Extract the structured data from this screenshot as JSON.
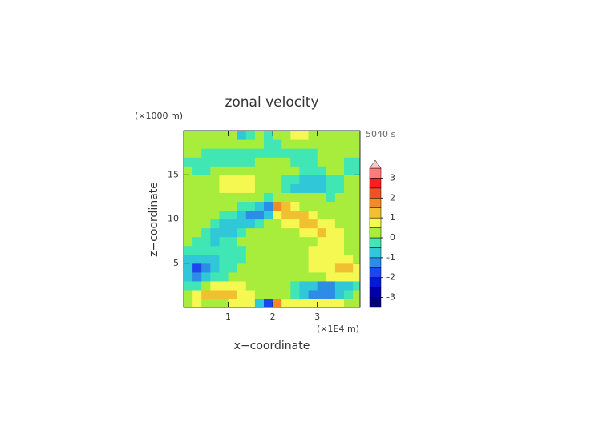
{
  "chart_data": {
    "type": "contour",
    "title": "zonal velocity",
    "time_label": "5040 s",
    "xlabel": "x−coordinate",
    "ylabel": "z−coordinate",
    "x_unit": "(×1E4 m)",
    "y_unit": "(×1000 m)",
    "xlim": [
      0,
      3.96
    ],
    "ylim": [
      0,
      20
    ],
    "xticks": [
      1,
      2,
      3
    ],
    "yticks": [
      5,
      10,
      15
    ],
    "x": [
      0.1,
      0.3,
      0.5,
      0.7,
      0.9,
      1.1,
      1.3,
      1.5,
      1.7,
      1.9,
      2.1,
      2.3,
      2.5,
      2.7,
      2.9,
      3.1,
      3.3,
      3.5,
      3.7,
      3.9
    ],
    "y": [
      0.5,
      1.5,
      2.5,
      3.5,
      4.5,
      5.5,
      6.5,
      7.5,
      8.5,
      9.5,
      10.5,
      11.5,
      12.5,
      13.5,
      14.5,
      15.5,
      16.5,
      17.5,
      18.5,
      19.5
    ],
    "z": [
      [
        0.3,
        0.6,
        0.4,
        0.2,
        0.3,
        0.6,
        0.7,
        0.5,
        -0.6,
        -1.6,
        1.6,
        0.9,
        0.6,
        0.7,
        0.8,
        0.9,
        0.8,
        0.6,
        0.4,
        0.3
      ],
      [
        0.4,
        0.7,
        1.0,
        1.1,
        1.1,
        1.0,
        0.9,
        0.6,
        0.3,
        0.2,
        0.2,
        0.0,
        -0.3,
        -0.7,
        -1.1,
        -1.4,
        -1.3,
        -0.9,
        -0.4,
        0.1
      ],
      [
        -0.3,
        -0.4,
        0.3,
        0.6,
        0.7,
        0.6,
        0.5,
        0.3,
        0.2,
        0.1,
        0.1,
        0.0,
        -0.2,
        -0.6,
        -1.0,
        -1.3,
        -1.3,
        -1.0,
        -0.6,
        -0.2
      ],
      [
        -0.7,
        -1.1,
        -0.9,
        -0.5,
        -0.2,
        0.1,
        0.2,
        0.2,
        0.2,
        0.2,
        0.2,
        0.2,
        0.2,
        0.1,
        0.2,
        0.4,
        0.6,
        0.8,
        0.8,
        0.5
      ],
      [
        -1.0,
        -1.6,
        -1.4,
        -0.9,
        -0.5,
        -0.2,
        0.1,
        0.2,
        0.2,
        0.2,
        0.2,
        0.2,
        0.2,
        0.3,
        0.5,
        0.7,
        0.9,
        1.1,
        1.0,
        0.7
      ],
      [
        -0.6,
        -0.9,
        -0.8,
        -0.6,
        -0.4,
        -0.2,
        -0.1,
        0.2,
        0.3,
        0.3,
        0.3,
        0.2,
        0.2,
        0.3,
        0.5,
        0.7,
        0.8,
        0.8,
        0.6,
        0.4
      ],
      [
        -0.2,
        -0.3,
        -0.4,
        -0.4,
        -0.3,
        -0.2,
        -0.1,
        0.2,
        0.3,
        0.2,
        0.2,
        0.3,
        0.3,
        0.4,
        0.5,
        0.6,
        0.6,
        0.5,
        0.3,
        0.2
      ],
      [
        0.2,
        -0.3,
        -0.5,
        -0.6,
        -0.4,
        -0.1,
        0.2,
        0.3,
        0.2,
        0.2,
        0.2,
        0.2,
        0.2,
        0.3,
        0.4,
        0.6,
        0.8,
        0.7,
        0.4,
        0.2
      ],
      [
        0.2,
        0.1,
        -0.3,
        -0.6,
        -0.9,
        -0.6,
        -0.3,
        0.1,
        0.2,
        0.2,
        0.2,
        0.2,
        0.3,
        0.5,
        0.8,
        1.0,
        0.9,
        0.6,
        0.3,
        0.2
      ],
      [
        0.2,
        0.2,
        0.1,
        -0.3,
        -0.6,
        -1.0,
        -0.9,
        -0.6,
        -0.2,
        0.1,
        0.3,
        0.5,
        0.8,
        1.1,
        1.2,
        0.9,
        0.5,
        0.3,
        0.2,
        0.2
      ],
      [
        0.2,
        0.2,
        0.2,
        0.2,
        -0.1,
        -0.4,
        -0.8,
        -1.3,
        -1.4,
        -0.6,
        0.8,
        1.4,
        1.4,
        1.1,
        0.7,
        0.4,
        0.3,
        0.2,
        0.2,
        0.2
      ],
      [
        0.2,
        0.2,
        0.2,
        0.2,
        0.2,
        0.1,
        -0.2,
        -0.5,
        -1.0,
        -1.5,
        1.8,
        1.2,
        0.7,
        0.4,
        0.3,
        0.2,
        0.2,
        0.2,
        0.2,
        0.2
      ],
      [
        0.2,
        0.2,
        0.1,
        0.0,
        0.1,
        0.2,
        0.2,
        0.2,
        0.1,
        -0.3,
        0.4,
        0.2,
        0.2,
        0.2,
        0.1,
        0.0,
        -0.1,
        0.0,
        0.2,
        0.2
      ],
      [
        0.2,
        0.2,
        0.2,
        0.3,
        0.6,
        0.8,
        0.9,
        0.7,
        0.3,
        0.2,
        0.1,
        -0.2,
        -0.6,
        -0.9,
        -1.0,
        -0.8,
        -0.5,
        -0.2,
        0.1,
        0.2
      ],
      [
        0.2,
        0.1,
        0.1,
        0.3,
        0.6,
        0.7,
        0.8,
        0.6,
        0.3,
        0.2,
        0.1,
        -0.2,
        -0.5,
        -0.7,
        -0.8,
        -0.7,
        -0.4,
        -0.2,
        0.0,
        0.1
      ],
      [
        0.1,
        -0.1,
        -0.2,
        0.0,
        0.2,
        0.3,
        0.3,
        0.2,
        0.1,
        0.2,
        0.2,
        0.1,
        0.0,
        -0.1,
        -0.2,
        -0.1,
        0.1,
        0.0,
        -0.1,
        -0.2
      ],
      [
        -0.2,
        -0.2,
        -0.3,
        -0.2,
        -0.1,
        -0.1,
        -0.2,
        -0.2,
        0.1,
        0.3,
        0.3,
        0.1,
        -0.2,
        -0.2,
        -0.1,
        0.1,
        0.2,
        0.1,
        -0.1,
        -0.2
      ],
      [
        0.2,
        0.1,
        -0.1,
        -0.2,
        -0.2,
        -0.1,
        -0.1,
        -0.2,
        -0.2,
        -0.1,
        -0.1,
        -0.2,
        -0.2,
        -0.2,
        -0.1,
        0.1,
        0.2,
        0.2,
        0.1,
        0.2
      ],
      [
        0.3,
        0.3,
        0.2,
        0.1,
        0.0,
        0.1,
        0.2,
        0.2,
        0.2,
        -0.2,
        -0.2,
        0.2,
        0.2,
        0.2,
        0.2,
        0.1,
        0.1,
        0.2,
        0.2,
        0.3
      ],
      [
        0.3,
        0.3,
        0.3,
        0.2,
        0.2,
        0.3,
        -0.6,
        -0.3,
        0.1,
        -0.2,
        0.2,
        0.3,
        0.6,
        0.7,
        0.4,
        0.3,
        0.3,
        0.3,
        0.3,
        0.3
      ]
    ],
    "levels": [
      -3.5,
      -3,
      -2.5,
      -2,
      -1.5,
      -1,
      -0.5,
      0,
      0.5,
      1,
      1.5,
      2,
      2.5,
      3,
      3.5
    ],
    "colors": [
      "#00007a",
      "#0000a8",
      "#0018d8",
      "#1e46f0",
      "#2c8ce6",
      "#30c8d8",
      "#40e6b4",
      "#a8ec3c",
      "#f4f850",
      "#f0c030",
      "#f08c28",
      "#f05028",
      "#ff1e1e",
      "#ff7a7a"
    ],
    "extend_color": "#ffc8c8",
    "cbar_ticks": [
      -3,
      -2,
      -1,
      0,
      1,
      2,
      3
    ]
  }
}
